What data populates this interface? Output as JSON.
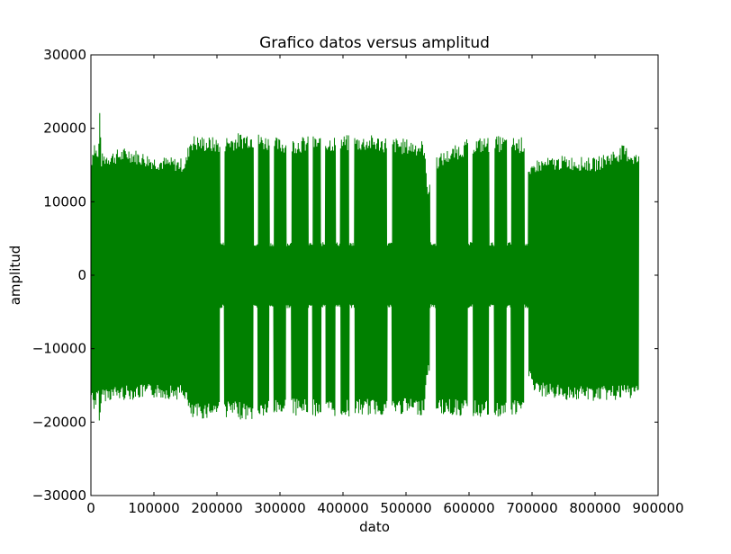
{
  "chart_data": {
    "type": "line",
    "title": "Grafico datos versus amplitud",
    "xlabel": "dato",
    "ylabel": "amplitud",
    "xlim": [
      0,
      900000
    ],
    "ylim": [
      -30000,
      30000
    ],
    "x_ticks": [
      0,
      100000,
      200000,
      300000,
      400000,
      500000,
      600000,
      700000,
      800000,
      900000
    ],
    "y_ticks": [
      -30000,
      -20000,
      -10000,
      0,
      10000,
      20000,
      30000
    ],
    "grid": false,
    "series_color": "#008000",
    "envelope": {
      "x": [
        0,
        5000,
        12000,
        14000,
        16000,
        20000,
        60000,
        100000,
        150000,
        158000,
        200000,
        250000,
        300000,
        350000,
        400000,
        450000,
        500000,
        528000,
        535000,
        545000,
        600000,
        650000,
        690000,
        695000,
        705000,
        750000,
        800000,
        845000,
        870000
      ],
      "upper": [
        16000,
        18800,
        16500,
        24500,
        16500,
        16800,
        17500,
        16300,
        15900,
        19200,
        18800,
        19700,
        18700,
        19000,
        19100,
        19100,
        18600,
        18400,
        12000,
        16200,
        18700,
        19000,
        18800,
        14000,
        15800,
        16300,
        16000,
        17800,
        16500
      ],
      "lower": [
        -17000,
        -18500,
        -17500,
        -23000,
        -17500,
        -17200,
        -17000,
        -16800,
        -17000,
        -20000,
        -19200,
        -19800,
        -19000,
        -19200,
        -19300,
        -19100,
        -19000,
        -19100,
        -13000,
        -19000,
        -19300,
        -19500,
        -19200,
        -14000,
        -16500,
        -17000,
        -17200,
        -17000,
        -16800
      ]
    },
    "gaps": [
      [
        205000,
        212000
      ],
      [
        258000,
        265000
      ],
      [
        283000,
        290000
      ],
      [
        310000,
        318000
      ],
      [
        345000,
        352000
      ],
      [
        365000,
        372000
      ],
      [
        388000,
        396000
      ],
      [
        410000,
        418000
      ],
      [
        470000,
        478000
      ],
      [
        538000,
        548000
      ],
      [
        598000,
        606000
      ],
      [
        632000,
        640000
      ],
      [
        660000,
        667000
      ],
      [
        688000,
        694000
      ]
    ],
    "gap_amplitude": 4500
  }
}
